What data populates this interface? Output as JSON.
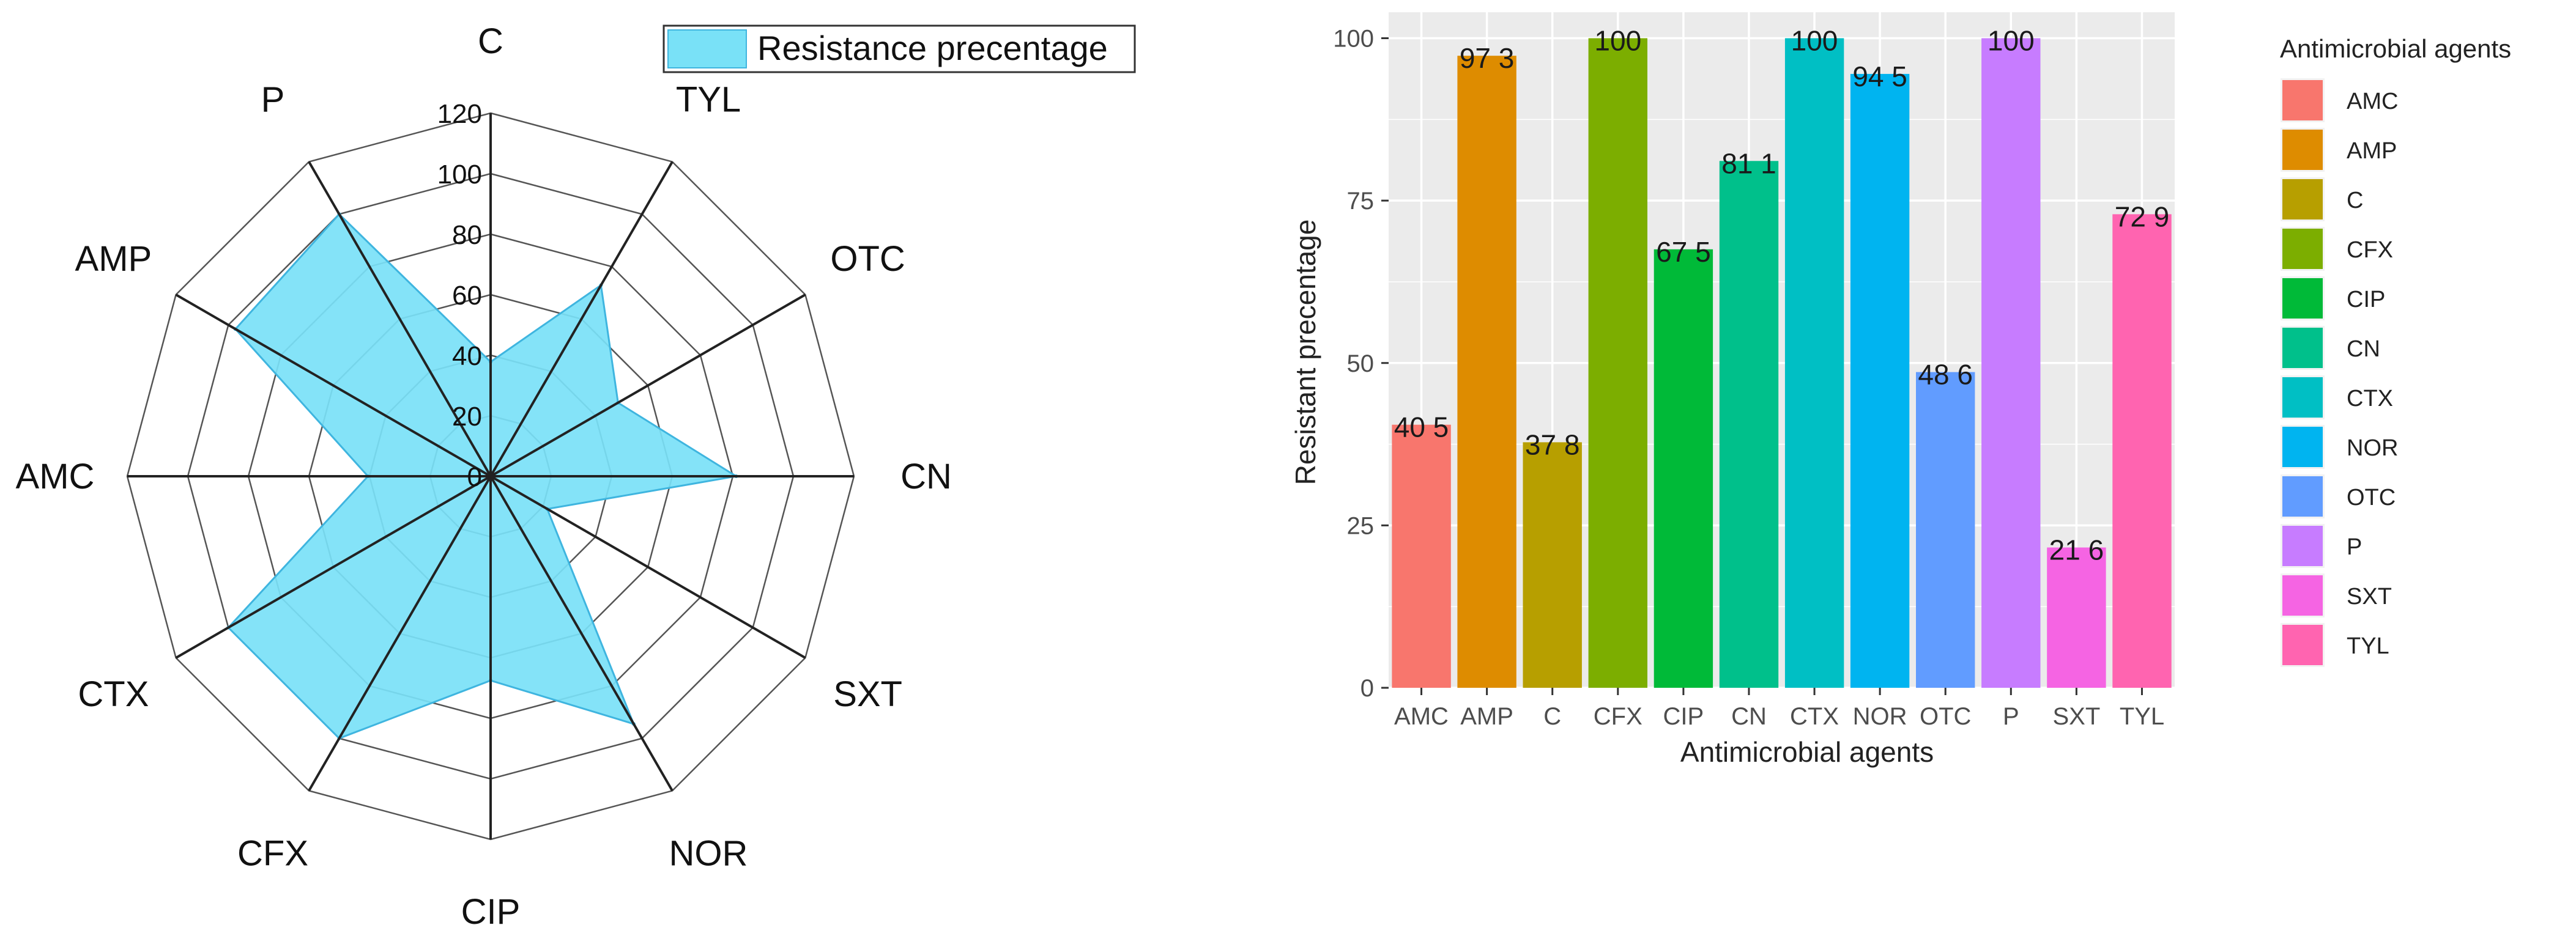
{
  "chart_data": [
    {
      "type": "radar",
      "title": "",
      "legend": {
        "label": "Resistance precentage",
        "position": "top-right"
      },
      "axes": [
        "C",
        "TYL",
        "OTC",
        "CN",
        "SXT",
        "NOR",
        "CIP",
        "CFX",
        "CTX",
        "AMC",
        "AMP",
        "P"
      ],
      "values": [
        37.8,
        72.9,
        48.6,
        81.1,
        21.6,
        94.5,
        67.5,
        100,
        100,
        40.5,
        97.3,
        100
      ],
      "rmax": 120,
      "ticks": [
        "0",
        "20",
        "40",
        "60",
        "80",
        "100",
        "120"
      ],
      "tick_values": [
        0,
        20,
        40,
        60,
        80,
        100,
        120
      ],
      "colors": {
        "fill": "#79e1f7",
        "stroke": "#3fb5df",
        "grid": "#555555",
        "spoke": "#222222"
      }
    },
    {
      "type": "bar",
      "title": "",
      "xlabel": "Antimicrobial agents",
      "ylabel": "Resistant precentage",
      "ylim": [
        0,
        104
      ],
      "yticks": [
        "0",
        "25",
        "50",
        "75",
        "100"
      ],
      "ytick_values": [
        0,
        25,
        50,
        75,
        100
      ],
      "categories": [
        "AMC",
        "AMP",
        "C",
        "CFX",
        "CIP",
        "CN",
        "CTX",
        "NOR",
        "OTC",
        "P",
        "SXT",
        "TYL"
      ],
      "values": [
        40.5,
        97.3,
        37.8,
        100,
        67.5,
        81.1,
        100,
        94.5,
        48.6,
        100,
        21.6,
        72.9
      ],
      "value_labels": [
        "40 5",
        "97 3",
        "37 8",
        "100",
        "67 5",
        "81 1",
        "100",
        "94 5",
        "48 6",
        "100",
        "21 6",
        "72 9"
      ],
      "colors": [
        "#f8766d",
        "#de8c00",
        "#b79f00",
        "#7cae00",
        "#00ba38",
        "#00c08b",
        "#00bfc4",
        "#00b4f0",
        "#619cff",
        "#c77cff",
        "#f564e3",
        "#ff64b0"
      ],
      "legend": {
        "title": "Antimicrobial agents",
        "position": "right",
        "items": [
          "AMC",
          "AMP",
          "C",
          "CFX",
          "CIP",
          "CN",
          "CTX",
          "NOR",
          "OTC",
          "P",
          "SXT",
          "TYL"
        ]
      },
      "panel_background": "#ebebeb",
      "grid_color": "#ffffff"
    }
  ]
}
